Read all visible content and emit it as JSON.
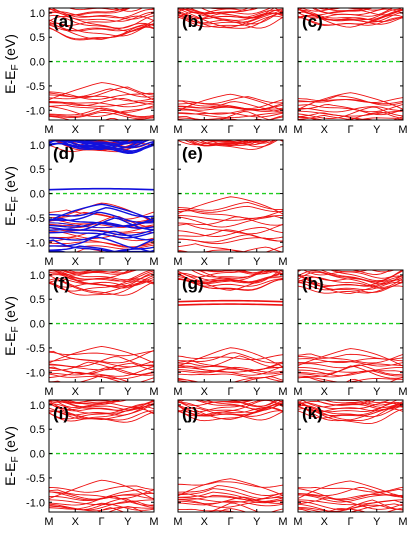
{
  "figure": {
    "ylabel_main": "E-E",
    "ylabel_sub": "F",
    "ylabel_unit": " (eV)"
  },
  "colors": {
    "red": "#ee1111",
    "blue": "#1111dd",
    "fermi": "#22cc22",
    "frame": "#000000"
  },
  "chart_data": {
    "type": "line",
    "x_ticks": [
      "M",
      "X",
      "Γ",
      "Y",
      "M"
    ],
    "y_ticks": [
      "1.0",
      "0.5",
      "0.0",
      "-0.5",
      "-1.0"
    ],
    "ylim": [
      -1.2,
      1.1
    ],
    "fermi_level": 0.0,
    "grid": false,
    "panels": [
      {
        "label": "(a)",
        "row": 0,
        "col": 0,
        "cb_min": 0.45,
        "vb_max": -0.42,
        "colors": [
          "red"
        ],
        "mid_bands": []
      },
      {
        "label": "(b)",
        "row": 0,
        "col": 1,
        "cb_min": 0.72,
        "vb_max": -0.65,
        "colors": [
          "red"
        ],
        "mid_bands": []
      },
      {
        "label": "(c)",
        "row": 0,
        "col": 2,
        "cb_min": 0.72,
        "vb_max": -0.62,
        "colors": [
          "red"
        ],
        "mid_bands": []
      },
      {
        "label": "(d)",
        "row": 1,
        "col": 0,
        "cb_min": 0.9,
        "vb_max": -0.2,
        "colors": [
          "red",
          "blue"
        ],
        "mid_bands": [
          0.08
        ]
      },
      {
        "label": "(e)",
        "row": 1,
        "col": 1,
        "cb_min": 1.0,
        "vb_max": -0.05,
        "colors": [
          "red"
        ],
        "mid_bands": []
      },
      {
        "label": "(f)",
        "row": 2,
        "col": 0,
        "cb_min": 0.62,
        "vb_max": -0.45,
        "colors": [
          "red"
        ],
        "mid_bands": []
      },
      {
        "label": "(g)",
        "row": 2,
        "col": 1,
        "cb_min": 0.7,
        "vb_max": -0.5,
        "colors": [
          "red"
        ],
        "mid_bands": [
          0.38,
          0.45
        ]
      },
      {
        "label": "(h)",
        "row": 2,
        "col": 2,
        "cb_min": 0.62,
        "vb_max": -0.5,
        "colors": [
          "red"
        ],
        "mid_bands": []
      },
      {
        "label": "(i)",
        "row": 3,
        "col": 0,
        "cb_min": 0.68,
        "vb_max": -0.55,
        "colors": [
          "red"
        ],
        "mid_bands": []
      },
      {
        "label": "(j)",
        "row": 3,
        "col": 1,
        "cb_min": 0.7,
        "vb_max": -0.5,
        "colors": [
          "red"
        ],
        "mid_bands": []
      },
      {
        "label": "(k)",
        "row": 3,
        "col": 2,
        "cb_min": 0.7,
        "vb_max": -0.55,
        "colors": [
          "red"
        ],
        "mid_bands": []
      }
    ]
  }
}
